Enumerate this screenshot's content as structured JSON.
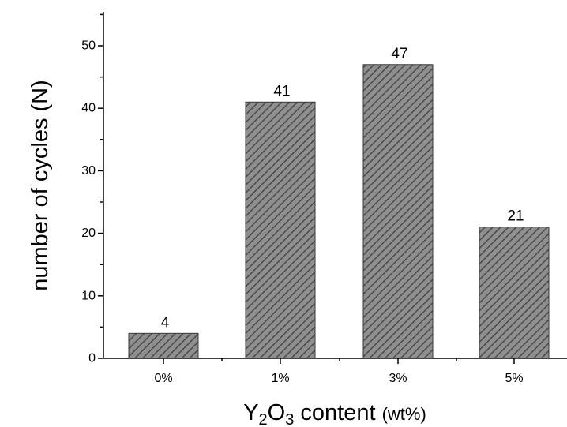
{
  "chart_data": {
    "type": "bar",
    "categories": [
      "0%",
      "1%",
      "3%",
      "5%"
    ],
    "values": [
      4,
      41,
      47,
      21
    ],
    "data_labels": [
      "4",
      "41",
      "47",
      "21"
    ],
    "title": "",
    "xlabel": {
      "prefix": "Y",
      "sub1": "2",
      "mid": "O",
      "sub2": "3",
      "suffix": " content ",
      "unit": "(wt%)"
    },
    "ylabel": "number of cycles (N)",
    "ylim": [
      0,
      55
    ],
    "yticks": [
      0,
      10,
      20,
      30,
      40,
      50
    ],
    "ytick_labels": [
      "0",
      "10",
      "20",
      "30",
      "40",
      "50"
    ],
    "minor_ytick_step": 5,
    "grid": false,
    "legend": "none",
    "bar_fill": "#8f8f8f",
    "bar_hatch": "#4a4a4a",
    "bar_edge": "#3a3a3a"
  }
}
